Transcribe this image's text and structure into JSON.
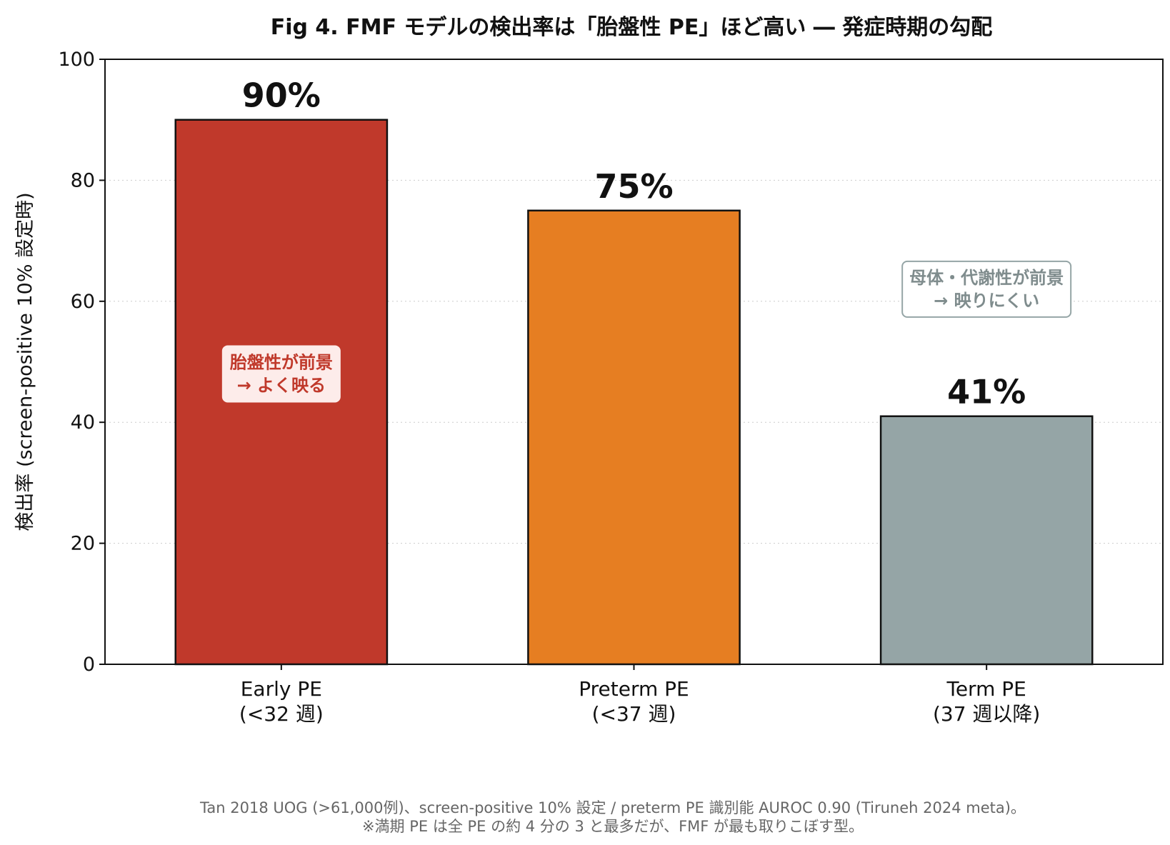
{
  "chart_data": {
    "type": "bar",
    "title": "Fig 4. FMF モデルの検出率は「胎盤性 PE」ほど高い ― 発症時期の勾配",
    "ylabel": "検出率 (screen-positive 10% 設定時)",
    "xlabel": "",
    "ylim": [
      0,
      100
    ],
    "yticks": [
      0,
      20,
      40,
      60,
      80,
      100
    ],
    "grid": true,
    "categories": [
      [
        "Early PE",
        "(<32 週)"
      ],
      [
        "Preterm PE",
        "(<37 週)"
      ],
      [
        "Term PE",
        "(37 週以降)"
      ]
    ],
    "values": [
      90,
      75,
      41
    ],
    "data_labels": [
      "90%",
      "75%",
      "41%"
    ],
    "colors": [
      "#c0392b",
      "#e67e22",
      "#95a5a6"
    ],
    "annotations": [
      {
        "lines": [
          "胎盤性が前景",
          "→ よく映る"
        ],
        "category_index": 0,
        "y": 48,
        "text_color": "#c0392b",
        "bg": "#fdecea",
        "border": "#fdecea"
      },
      {
        "lines": [
          "母体・代謝性が前景",
          "→ 映りにくい"
        ],
        "category_index": 2,
        "y": 62,
        "text_color": "#7f8c8d",
        "bg": "#ffffff",
        "border": "#95a5a6"
      }
    ]
  },
  "footer": {
    "line1": "Tan 2018 UOG (>61,000例)、screen-positive 10% 設定 / preterm PE 識別能 AUROC 0.90 (Tiruneh 2024 meta)。",
    "line2": "※満期 PE は全 PE の約 4 分の 3 と最多だが、FMF が最も取りこぼす型。"
  }
}
